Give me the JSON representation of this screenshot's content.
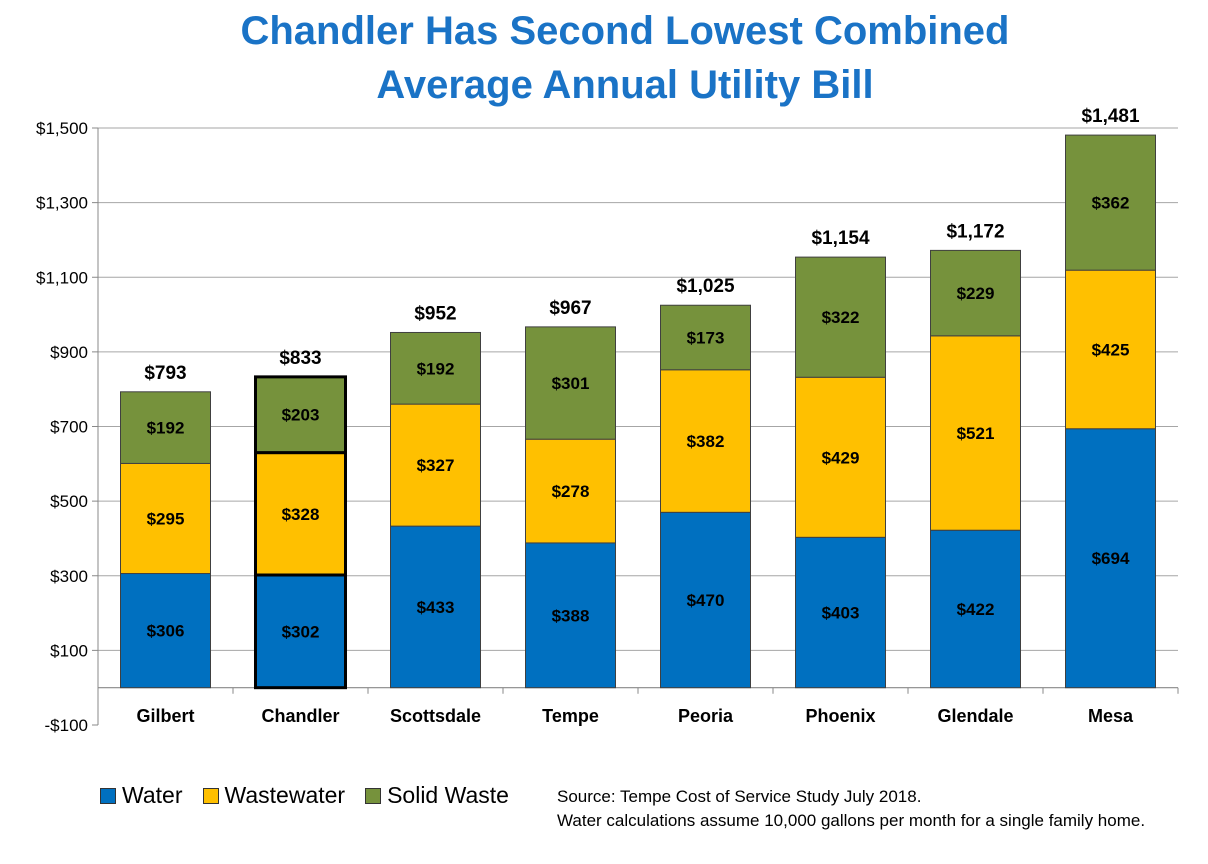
{
  "chart_data": {
    "type": "bar",
    "stacked": true,
    "title": "Chandler Has Second Lowest Combined",
    "title_line2": "Average Annual Utility Bill",
    "categories": [
      "Gilbert",
      "Chandler",
      "Scottsdale",
      "Tempe",
      "Peoria",
      "Phoenix",
      "Glendale",
      "Mesa"
    ],
    "series": [
      {
        "name": "Water",
        "color": "#0070c0",
        "values": [
          306,
          302,
          433,
          388,
          470,
          403,
          422,
          694
        ],
        "labels": [
          "$306",
          "$302",
          "$433",
          "$388",
          "$470",
          "$403",
          "$422",
          "$694"
        ]
      },
      {
        "name": "Wastewater",
        "color": "#ffc000",
        "values": [
          295,
          328,
          327,
          278,
          382,
          429,
          521,
          425
        ],
        "labels": [
          "$295",
          "$328",
          "$327",
          "$278",
          "$382",
          "$429",
          "$521",
          "$425"
        ]
      },
      {
        "name": "Solid Waste",
        "color": "#76923c",
        "values": [
          192,
          203,
          192,
          301,
          173,
          322,
          229,
          362
        ],
        "labels": [
          "$192",
          "$203",
          "$192",
          "$301",
          "$173",
          "$322",
          "$229",
          "$362"
        ]
      }
    ],
    "totals": [
      793,
      833,
      952,
      967,
      1025,
      1154,
      1172,
      1481
    ],
    "total_labels": [
      "$793",
      "$833",
      "$952",
      "$967",
      "$1,025",
      "$1,154",
      "$1,172",
      "$1,481"
    ],
    "highlighted_category": "Chandler",
    "ylim": [
      -100,
      1500
    ],
    "yticks": [
      -100,
      100,
      300,
      500,
      700,
      900,
      1100,
      1300,
      1500
    ],
    "ytick_labels": [
      "-$100",
      "$100",
      "$300",
      "$500",
      "$700",
      "$900",
      "$1,100",
      "$1,300",
      "$1,500"
    ],
    "grid": true,
    "legend_position": "bottom-left",
    "source_line1": "Source: Tempe Cost of Service Study July 2018.",
    "source_line2": "Water calculations assume 10,000 gallons per month for a single family home."
  }
}
